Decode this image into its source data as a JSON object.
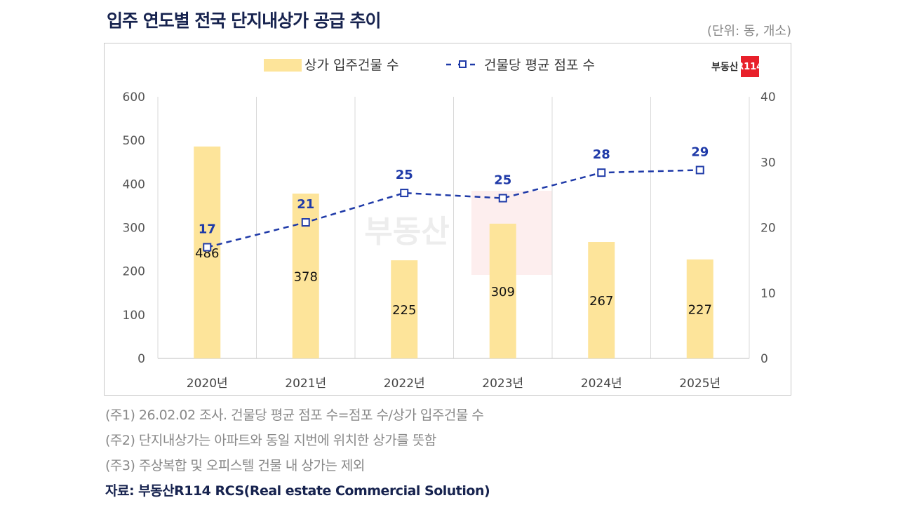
{
  "header": {
    "title": "입주 연도별 전국 단지내상가 공급 추이",
    "unit": "(단위: 동, 개소)"
  },
  "logo": {
    "text": "부동산R114"
  },
  "chart_data": {
    "type": "bar+line",
    "categories": [
      "2020년",
      "2021년",
      "2022년",
      "2023년",
      "2024년",
      "2025년"
    ],
    "series": [
      {
        "name": "상가 입주건물 수",
        "type": "bar",
        "axis": "left",
        "values": [
          486,
          378,
          225,
          309,
          267,
          227
        ],
        "labels": [
          "486",
          "378",
          "225",
          "309",
          "267",
          "227"
        ],
        "color": "#fde49a"
      },
      {
        "name": "건물당 평균 점포 수",
        "type": "line",
        "axis": "right",
        "values": [
          17,
          20.8,
          25.3,
          24.5,
          28.4,
          28.8
        ],
        "labels": [
          "17",
          "21",
          "25",
          "25",
          "28",
          "29"
        ],
        "color": "#1f3aa8",
        "style": "dashed",
        "marker": "square-open"
      }
    ],
    "y_left": {
      "range": [
        0,
        600
      ],
      "ticks": [
        "0",
        "100",
        "200",
        "300",
        "400",
        "500",
        "600"
      ]
    },
    "y_right": {
      "range": [
        0,
        40
      ],
      "ticks": [
        "0",
        "10",
        "20",
        "30",
        "40"
      ]
    },
    "grid": "vertical",
    "legend": "top-center"
  },
  "notes": [
    "(주1) 26.02.02 조사. 건물당 평균 점포 수=점포 수/상가 입주건물 수",
    "(주2) 단지내상가는 아파트와 동일 지번에 위치한 상가를 뜻함",
    "(주3) 주상복합 및 오피스텔 건물 내 상가는 제외"
  ],
  "source": "자료: 부동산R114 RCS(Real estate Commercial Solution)"
}
